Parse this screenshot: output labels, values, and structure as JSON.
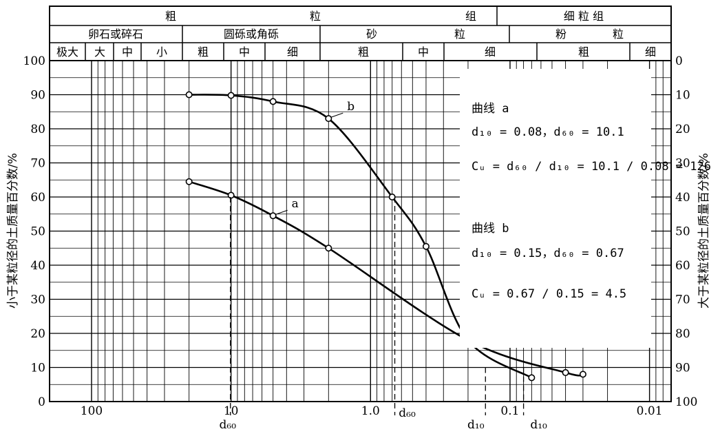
{
  "chart_data": {
    "type": "line",
    "x_scale": "log",
    "x_reversed": true,
    "xlim": [
      200,
      0.007
    ],
    "ylim": [
      0,
      100
    ],
    "x_ticks": [
      {
        "value": 100,
        "label": "100"
      },
      {
        "value": 10,
        "label": "10"
      },
      {
        "value": 1,
        "label": "1.0"
      },
      {
        "value": 0.1,
        "label": "0.1"
      },
      {
        "value": 0.01,
        "label": "0.01"
      }
    ],
    "y_left_ticks": [
      "0",
      "10",
      "20",
      "30",
      "40",
      "50",
      "60",
      "70",
      "80",
      "90",
      "100"
    ],
    "y_right_ticks": [
      "100",
      "90",
      "80",
      "70",
      "60",
      "50",
      "40",
      "30",
      "20",
      "10",
      "0"
    ],
    "ylabel_left": "小于某粒径的土质量百分数/%",
    "ylabel_right": "大于某粒径的土质量百分数/%",
    "header": {
      "row1": [
        "粗",
        "粒",
        "组",
        "细 粒 组"
      ],
      "row2": [
        "卵石或碎石",
        "圆砾或角砾",
        "砂",
        "粒",
        "粉",
        "粒"
      ],
      "row3": [
        "极大",
        "大",
        "中",
        "小",
        "粗",
        "中",
        "细",
        "粗",
        "中",
        "细",
        "粗",
        "细"
      ]
    },
    "series": [
      {
        "name": "a",
        "points": [
          [
            20,
            64.5
          ],
          [
            10,
            60.5
          ],
          [
            5,
            54.5
          ],
          [
            2,
            45
          ],
          [
            0.2,
            18
          ],
          [
            0.04,
            8.5
          ],
          [
            0.03,
            8
          ]
        ]
      },
      {
        "name": "b",
        "points": [
          [
            20,
            90
          ],
          [
            10,
            89.8
          ],
          [
            5,
            88
          ],
          [
            2,
            83
          ],
          [
            0.7,
            60
          ],
          [
            0.4,
            45.5
          ],
          [
            0.2,
            18
          ],
          [
            0.07,
            7
          ]
        ]
      }
    ],
    "annotations": {
      "curve_a_title": "曲线 a",
      "curve_a_d": "d₁₀ = 0.08，d₆₀ = 10.1",
      "curve_a_cu": "Cᵤ = d₆₀ / d₁₀ = 10.1 / 0.08 = 126",
      "curve_b_title": "曲线 b",
      "curve_b_d": "d₁₀ = 0.15，d₆₀ = 0.67",
      "curve_b_cu": "Cᵤ = 0.67 / 0.15 = 4.5",
      "d60_a": "d₆₀",
      "d60_b": "d₆₀",
      "d10_b": "d₁₀",
      "d10_a": "d₁₀"
    },
    "grid": true
  }
}
